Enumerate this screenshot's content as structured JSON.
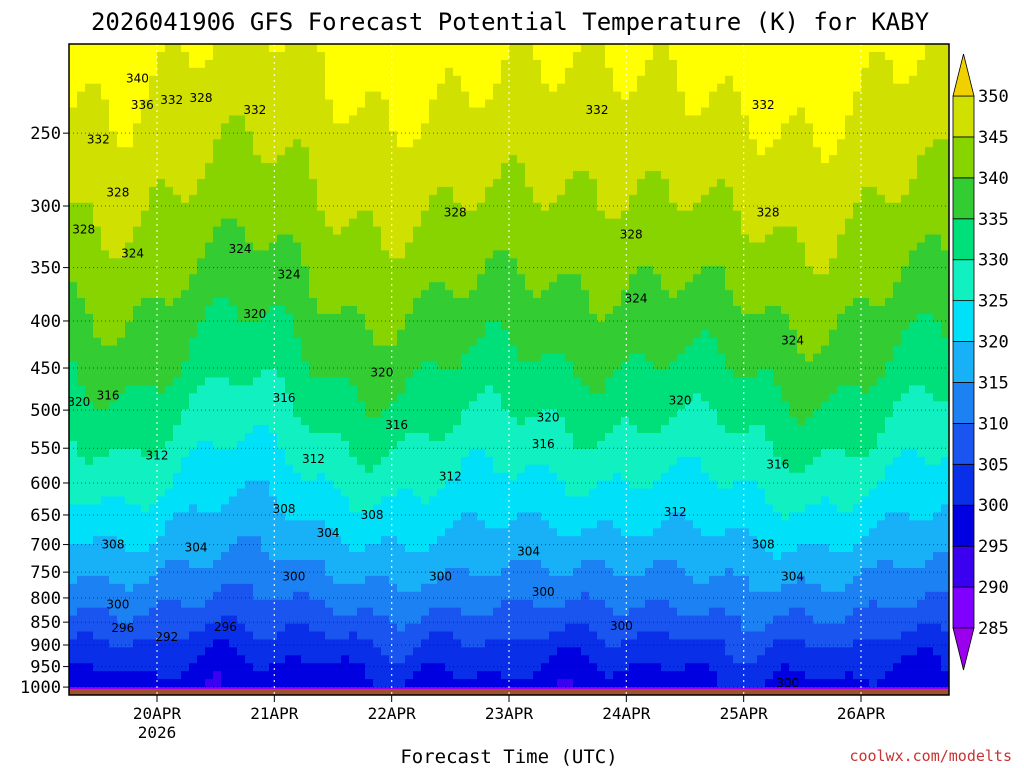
{
  "chart_data": {
    "type": "heatmap",
    "title": "2026041906 GFS Forecast Potential Temperature (K) for KABY",
    "xlabel": "Forecast Time (UTC)",
    "ylabel": "",
    "x_ticks": [
      {
        "label": "20APR",
        "sublabel": "2026",
        "hours": 18
      },
      {
        "label": "21APR",
        "sublabel": "",
        "hours": 42
      },
      {
        "label": "22APR",
        "sublabel": "",
        "hours": 66
      },
      {
        "label": "23APR",
        "sublabel": "",
        "hours": 90
      },
      {
        "label": "24APR",
        "sublabel": "",
        "hours": 114
      },
      {
        "label": "25APR",
        "sublabel": "",
        "hours": 138
      },
      {
        "label": "26APR",
        "sublabel": "",
        "hours": 162
      }
    ],
    "x_range_hours": [
      0,
      180
    ],
    "y_axis": "pressure (hPa), log scale, inverted",
    "y_ticks": [
      250,
      300,
      350,
      400,
      450,
      500,
      550,
      600,
      650,
      700,
      750,
      800,
      850,
      900,
      950,
      1000
    ],
    "y_range": [
      1020,
      200
    ],
    "grid": "dotted",
    "colorbar": {
      "levels": [
        285,
        290,
        295,
        300,
        305,
        310,
        315,
        320,
        325,
        330,
        335,
        340,
        345,
        350
      ],
      "colors": [
        "#9a00ee",
        "#8000ff",
        "#3a00f0",
        "#0000e0",
        "#0a2fe8",
        "#1a55f0",
        "#1c82f4",
        "#18b0f6",
        "#00e0f8",
        "#10f0c0",
        "#00e07a",
        "#33cc33",
        "#88d400",
        "#d0e000",
        "#ffff00",
        "#f0d000"
      ]
    },
    "contour_labels": [
      {
        "value": "340",
        "t": 14,
        "p": 218
      },
      {
        "value": "336",
        "t": 15,
        "p": 233
      },
      {
        "value": "332",
        "t": 21,
        "p": 230
      },
      {
        "value": "328",
        "t": 27,
        "p": 229
      },
      {
        "value": "332",
        "t": 38,
        "p": 236
      },
      {
        "value": "332",
        "t": 108,
        "p": 236
      },
      {
        "value": "332",
        "t": 142,
        "p": 233
      },
      {
        "value": "332",
        "t": 6,
        "p": 254
      },
      {
        "value": "328",
        "t": 10,
        "p": 290
      },
      {
        "value": "328",
        "t": 3,
        "p": 318
      },
      {
        "value": "324",
        "t": 13,
        "p": 338
      },
      {
        "value": "324",
        "t": 35,
        "p": 334
      },
      {
        "value": "324",
        "t": 45,
        "p": 356
      },
      {
        "value": "328",
        "t": 79,
        "p": 305
      },
      {
        "value": "328",
        "t": 115,
        "p": 322
      },
      {
        "value": "328",
        "t": 143,
        "p": 305
      },
      {
        "value": "324",
        "t": 116,
        "p": 378
      },
      {
        "value": "324",
        "t": 148,
        "p": 420
      },
      {
        "value": "320",
        "t": 38,
        "p": 393
      },
      {
        "value": "320",
        "t": 64,
        "p": 455
      },
      {
        "value": "320",
        "t": 2,
        "p": 490
      },
      {
        "value": "316",
        "t": 8,
        "p": 482
      },
      {
        "value": "316",
        "t": 44,
        "p": 485
      },
      {
        "value": "316",
        "t": 67,
        "p": 519
      },
      {
        "value": "320",
        "t": 98,
        "p": 509
      },
      {
        "value": "320",
        "t": 125,
        "p": 488
      },
      {
        "value": "316",
        "t": 97,
        "p": 544
      },
      {
        "value": "316",
        "t": 145,
        "p": 573
      },
      {
        "value": "312",
        "t": 18,
        "p": 560
      },
      {
        "value": "312",
        "t": 50,
        "p": 565
      },
      {
        "value": "312",
        "t": 78,
        "p": 590
      },
      {
        "value": "308",
        "t": 44,
        "p": 640
      },
      {
        "value": "308",
        "t": 62,
        "p": 650
      },
      {
        "value": "312",
        "t": 124,
        "p": 645
      },
      {
        "value": "308",
        "t": 9,
        "p": 700
      },
      {
        "value": "304",
        "t": 26,
        "p": 705
      },
      {
        "value": "304",
        "t": 53,
        "p": 680
      },
      {
        "value": "304",
        "t": 94,
        "p": 712
      },
      {
        "value": "308",
        "t": 142,
        "p": 700
      },
      {
        "value": "300",
        "t": 10,
        "p": 813
      },
      {
        "value": "300",
        "t": 46,
        "p": 758
      },
      {
        "value": "300",
        "t": 76,
        "p": 758
      },
      {
        "value": "300",
        "t": 97,
        "p": 788
      },
      {
        "value": "304",
        "t": 148,
        "p": 758
      },
      {
        "value": "296",
        "t": 11,
        "p": 863
      },
      {
        "value": "296",
        "t": 32,
        "p": 860
      },
      {
        "value": "292",
        "t": 20,
        "p": 882
      },
      {
        "value": "300",
        "t": 113,
        "p": 858
      },
      {
        "value": "300",
        "t": 147,
        "p": 990
      }
    ]
  },
  "credit": "coolwx.com/modelts"
}
